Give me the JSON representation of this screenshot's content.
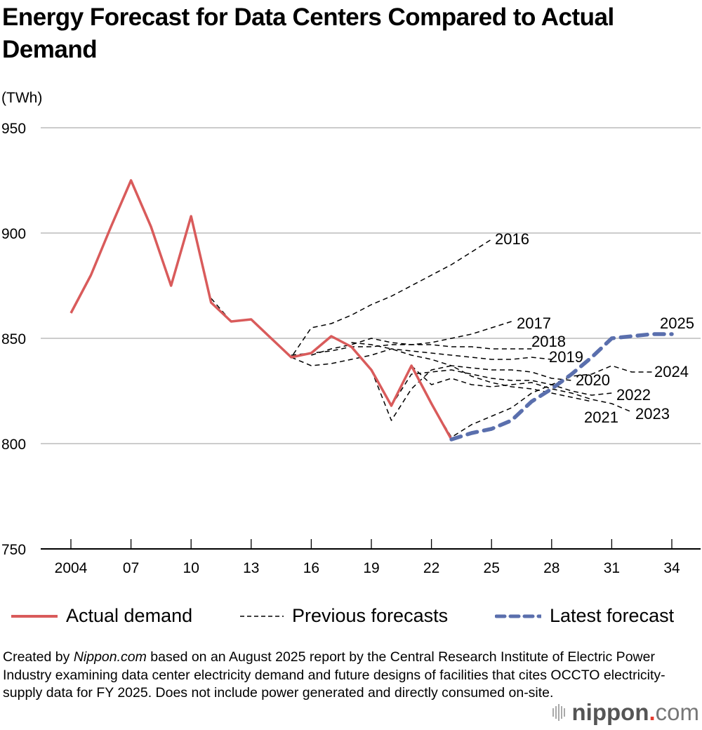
{
  "chart_data": {
    "type": "line",
    "title": "Energy Forecast for Data Centers Compared to Actual Demand",
    "ylabel": "(TWh)",
    "xlabel": "",
    "ylim": [
      750,
      950
    ],
    "xlim": [
      2004,
      2035
    ],
    "yticks": [
      750,
      800,
      850,
      900,
      950
    ],
    "xticks": [
      2004,
      2007,
      2010,
      2013,
      2016,
      2019,
      2022,
      2025,
      2028,
      2031,
      2034
    ],
    "xtick_labels": [
      "2004",
      "07",
      "10",
      "13",
      "16",
      "19",
      "22",
      "25",
      "28",
      "31",
      "34"
    ],
    "grid": "horizontal",
    "legend_position": "bottom",
    "series": [
      {
        "name": "Actual demand",
        "kind": "actual",
        "color": "#d95b5b",
        "x": [
          2004,
          2005,
          2006,
          2007,
          2008,
          2009,
          2010,
          2011,
          2012,
          2013,
          2014,
          2015,
          2016,
          2017,
          2018,
          2019,
          2020,
          2021,
          2022,
          2023
        ],
        "y": [
          862,
          880,
          903,
          925,
          903,
          875,
          908,
          867,
          858,
          859,
          850,
          841,
          843,
          851,
          846,
          835,
          818,
          837,
          819,
          802
        ]
      },
      {
        "name": "2016",
        "kind": "previous",
        "label": "2016",
        "x": [
          2011,
          2012,
          2013,
          2014,
          2015,
          2016,
          2017,
          2018,
          2019,
          2020,
          2021,
          2022,
          2023,
          2024,
          2025
        ],
        "y": [
          869,
          858,
          859,
          850,
          841,
          855,
          857,
          861,
          866,
          870,
          875,
          880,
          885,
          891,
          897
        ]
      },
      {
        "name": "2017",
        "kind": "previous",
        "label": "2017",
        "x": [
          2015,
          2016,
          2017,
          2018,
          2019,
          2020,
          2021,
          2022,
          2023,
          2024,
          2025,
          2026
        ],
        "y": [
          842,
          843,
          844,
          846,
          846,
          847,
          847,
          848,
          850,
          852,
          855,
          858
        ]
      },
      {
        "name": "2018",
        "kind": "previous",
        "label": "2018",
        "x": [
          2016,
          2017,
          2018,
          2019,
          2020,
          2021,
          2022,
          2023,
          2024,
          2025,
          2026,
          2027
        ],
        "y": [
          842,
          845,
          847,
          850,
          848,
          847,
          847,
          846,
          846,
          845,
          845,
          845
        ]
      },
      {
        "name": "2019",
        "kind": "previous",
        "label": "2019",
        "x": [
          2015,
          2016,
          2017,
          2018,
          2019,
          2020,
          2021,
          2022,
          2023,
          2024,
          2025,
          2026,
          2027,
          2028
        ],
        "y": [
          841,
          837,
          838,
          840,
          842,
          845,
          844,
          843,
          842,
          841,
          840,
          840,
          841,
          840
        ]
      },
      {
        "name": "2020",
        "kind": "previous",
        "label": "2020",
        "x": [
          2018,
          2019,
          2020,
          2021,
          2022,
          2023,
          2024,
          2025,
          2026,
          2027,
          2028,
          2029
        ],
        "y": [
          848,
          847,
          845,
          842,
          840,
          837,
          836,
          835,
          835,
          834,
          831,
          830
        ]
      },
      {
        "name": "2021",
        "kind": "previous",
        "label": "2021",
        "x": [
          2019,
          2020,
          2021,
          2022,
          2023,
          2024,
          2025,
          2026,
          2027,
          2028,
          2029,
          2030
        ],
        "y": [
          835,
          811,
          826,
          835,
          837,
          832,
          829,
          827,
          826,
          824,
          822,
          820
        ]
      },
      {
        "name": "2022",
        "kind": "previous",
        "label": "2022",
        "x": [
          2020,
          2021,
          2022,
          2023,
          2024,
          2025,
          2026,
          2027,
          2028,
          2029,
          2030,
          2031
        ],
        "y": [
          818,
          833,
          834,
          835,
          833,
          831,
          830,
          830,
          828,
          825,
          823,
          824
        ]
      },
      {
        "name": "2023",
        "kind": "previous",
        "label": "2023",
        "x": [
          2021,
          2022,
          2023,
          2024,
          2025,
          2026,
          2027,
          2028,
          2029,
          2030,
          2031,
          2032
        ],
        "y": [
          837,
          828,
          831,
          828,
          827,
          828,
          829,
          826,
          824,
          821,
          819,
          815
        ]
      },
      {
        "name": "2024",
        "kind": "previous",
        "label": "2024",
        "x": [
          2022,
          2023,
          2024,
          2025,
          2026,
          2027,
          2028,
          2029,
          2030,
          2031,
          2032,
          2033
        ],
        "y": [
          819,
          803,
          809,
          813,
          817,
          824,
          828,
          832,
          833,
          837,
          834,
          834
        ]
      },
      {
        "name": "2025",
        "kind": "latest",
        "label": "2025",
        "color": "#5a6fad",
        "x": [
          2023,
          2024,
          2025,
          2026,
          2027,
          2028,
          2029,
          2030,
          2031,
          2032,
          2033,
          2034
        ],
        "y": [
          802,
          805,
          807,
          811,
          820,
          826,
          833,
          841,
          850,
          851,
          852,
          852
        ]
      }
    ],
    "legend": [
      {
        "label": "Actual demand",
        "style": "solid",
        "color": "#d95b5b"
      },
      {
        "label": "Previous forecasts",
        "style": "dashed-thin",
        "color": "#000000"
      },
      {
        "label": "Latest forecast",
        "style": "dashed-thick",
        "color": "#5a6fad"
      }
    ]
  },
  "title": "Energy Forecast for Data Centers Compared to Actual Demand",
  "unit_label": "(TWh)",
  "footer": {
    "prefix": "Created by ",
    "source_italic": "Nippon.com",
    "text": " based on an August 2025 report by the Central Research Institute of Electric Power Industry examining data center electricity demand and future designs of facilities that cites OCCTO electricity-supply data for FY 2025. Does not include power generated and directly consumed on-site."
  },
  "logo": {
    "name": "nippon",
    "dot": ".",
    "tld": "com"
  }
}
